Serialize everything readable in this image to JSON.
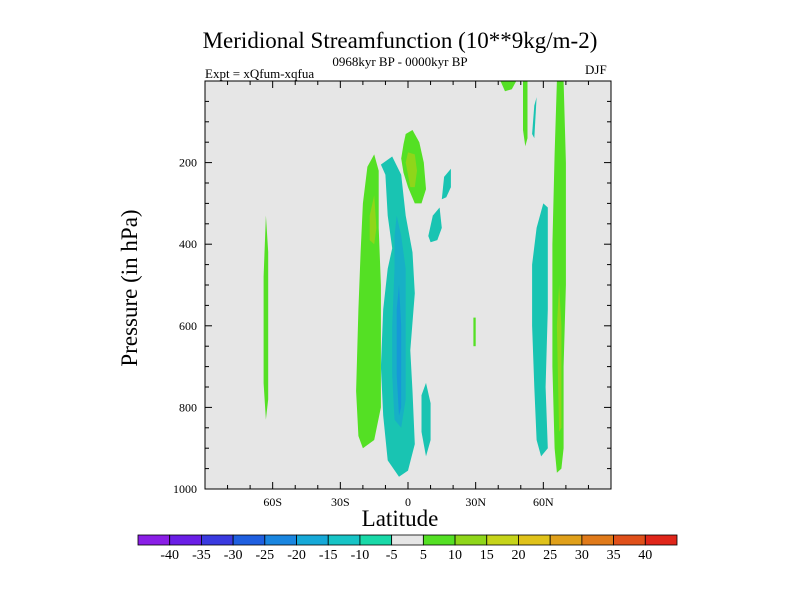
{
  "chart_data": {
    "type": "contour",
    "title": "Meridional Streamfunction (10**9kg/m-2)",
    "subtitle": "0968kyr BP - 0000kyr BP",
    "left_info": "Expt = xQfum-xqfua",
    "right_info": "DJF",
    "xlabel": "Latitude",
    "ylabel": "Pressure (in hPa)",
    "xlim": [
      -90,
      90
    ],
    "ylim": [
      1000,
      0
    ],
    "x_ticks": [
      {
        "value": -60,
        "label": "60S"
      },
      {
        "value": -30,
        "label": "30S"
      },
      {
        "value": 0,
        "label": "0"
      },
      {
        "value": 30,
        "label": "30N"
      },
      {
        "value": 60,
        "label": "60N"
      }
    ],
    "y_ticks": [
      {
        "value": 200,
        "label": "200"
      },
      {
        "value": 400,
        "label": "400"
      },
      {
        "value": 600,
        "label": "600"
      },
      {
        "value": 800,
        "label": "800"
      },
      {
        "value": 1000,
        "label": "1000"
      }
    ],
    "background_color": "#e6e6e6",
    "regions": [
      {
        "level": "-5..-10",
        "color": "#19c4b2",
        "polygon": [
          [
            -7,
            410
          ],
          [
            -9,
            330
          ],
          [
            -10,
            230
          ],
          [
            -12,
            205
          ],
          [
            -7,
            185
          ],
          [
            -3,
            230
          ],
          [
            -1,
            330
          ],
          [
            2,
            420
          ],
          [
            3,
            520
          ],
          [
            1,
            660
          ],
          [
            2,
            760
          ],
          [
            3,
            890
          ],
          [
            0,
            955
          ],
          [
            -4,
            970
          ],
          [
            -9,
            930
          ],
          [
            -11,
            820
          ],
          [
            -12,
            700
          ],
          [
            -11,
            560
          ],
          [
            -9,
            460
          ]
        ]
      },
      {
        "level": "-10..-15",
        "color": "#17b0c6",
        "polygon": [
          [
            -6,
            460
          ],
          [
            -6,
            380
          ],
          [
            -5,
            330
          ],
          [
            -3,
            380
          ],
          [
            -1,
            460
          ],
          [
            -1,
            560
          ],
          [
            -1,
            780
          ],
          [
            -3,
            850
          ],
          [
            -6,
            830
          ],
          [
            -7,
            720
          ],
          [
            -7,
            600
          ]
        ]
      },
      {
        "level": "-15..-20",
        "color": "#1699d6",
        "polygon": [
          [
            -5,
            560
          ],
          [
            -4,
            500
          ],
          [
            -3,
            600
          ],
          [
            -3,
            800
          ],
          [
            -4,
            820
          ],
          [
            -5,
            720
          ]
        ]
      },
      {
        "level": "-5..-10",
        "color": "#19c4b2",
        "polygon": [
          [
            6,
            770
          ],
          [
            8,
            740
          ],
          [
            10,
            790
          ],
          [
            10,
            880
          ],
          [
            8,
            920
          ],
          [
            6,
            860
          ]
        ]
      },
      {
        "level": "-5..-10",
        "color": "#19c4b2",
        "polygon": [
          [
            9,
            380
          ],
          [
            11,
            330
          ],
          [
            14,
            310
          ],
          [
            15,
            360
          ],
          [
            13,
            390
          ],
          [
            10,
            395
          ]
        ]
      },
      {
        "level": "-5..-10",
        "color": "#19c4b2",
        "polygon": [
          [
            15,
            290
          ],
          [
            16,
            235
          ],
          [
            19,
            215
          ],
          [
            19,
            260
          ],
          [
            17,
            285
          ]
        ]
      },
      {
        "level": "-5..-10",
        "color": "#19c4b2",
        "polygon": [
          [
            55,
            450
          ],
          [
            57,
            360
          ],
          [
            60,
            300
          ],
          [
            62,
            310
          ],
          [
            62,
            560
          ],
          [
            61,
            750
          ],
          [
            62,
            900
          ],
          [
            59,
            920
          ],
          [
            57,
            880
          ],
          [
            56,
            750
          ],
          [
            55,
            600
          ]
        ]
      },
      {
        "level": "-5..-10",
        "color": "#19c4b2",
        "polygon": [
          [
            55,
            130
          ],
          [
            56,
            60
          ],
          [
            57,
            40
          ],
          [
            56,
            140
          ]
        ]
      },
      {
        "level": "5..10",
        "color": "#54e024",
        "polygon": [
          [
            -20,
            300
          ],
          [
            -18,
            210
          ],
          [
            -15,
            180
          ],
          [
            -13,
            220
          ],
          [
            -13,
            360
          ],
          [
            -12,
            500
          ],
          [
            -12,
            650
          ],
          [
            -12,
            800
          ],
          [
            -15,
            880
          ],
          [
            -20,
            900
          ],
          [
            -22,
            870
          ],
          [
            -23,
            760
          ],
          [
            -22,
            560
          ],
          [
            -21,
            420
          ]
        ]
      },
      {
        "level": "10..15",
        "color": "#8fd61a",
        "polygon": [
          [
            -17,
            330
          ],
          [
            -15,
            280
          ],
          [
            -14,
            360
          ],
          [
            -15,
            400
          ],
          [
            -17,
            390
          ]
        ]
      },
      {
        "level": "5..10",
        "color": "#54e024",
        "polygon": [
          [
            -3,
            190
          ],
          [
            -2,
            155
          ],
          [
            -1,
            130
          ],
          [
            2,
            120
          ],
          [
            5,
            150
          ],
          [
            7,
            200
          ],
          [
            8,
            265
          ],
          [
            6,
            300
          ],
          [
            3,
            300
          ],
          [
            0,
            260
          ],
          [
            -2,
            225
          ]
        ]
      },
      {
        "level": "10..15",
        "color": "#8fd61a",
        "polygon": [
          [
            -1,
            200
          ],
          [
            0,
            175
          ],
          [
            3,
            180
          ],
          [
            4,
            220
          ],
          [
            3,
            260
          ],
          [
            1,
            260
          ]
        ]
      },
      {
        "level": "5..10",
        "color": "#54e024",
        "polygon": [
          [
            -64,
            480
          ],
          [
            -63,
            330
          ],
          [
            -62,
            420
          ],
          [
            -62,
            640
          ],
          [
            -62,
            780
          ],
          [
            -63,
            830
          ],
          [
            -64,
            740
          ]
        ]
      },
      {
        "level": "5..10",
        "color": "#54e024",
        "polygon": [
          [
            64,
            400
          ],
          [
            65,
            180
          ],
          [
            66,
            0
          ],
          [
            69,
            0
          ],
          [
            70,
            200
          ],
          [
            70,
            500
          ],
          [
            69,
            700
          ],
          [
            69,
            900
          ],
          [
            68,
            950
          ],
          [
            66,
            960
          ],
          [
            65,
            900
          ],
          [
            64,
            700
          ]
        ]
      },
      {
        "level": "10..15",
        "color": "#8fd61a",
        "polygon": [
          [
            66,
            600
          ],
          [
            67,
            500
          ],
          [
            68,
            600
          ],
          [
            68,
            850
          ],
          [
            67,
            860
          ]
        ]
      },
      {
        "level": "5..10",
        "color": "#54e024",
        "polygon": [
          [
            41,
            0
          ],
          [
            48,
            0
          ],
          [
            46,
            20
          ],
          [
            43,
            25
          ]
        ]
      },
      {
        "level": "5..10",
        "color": "#54e024",
        "polygon": [
          [
            51,
            0
          ],
          [
            53,
            0
          ],
          [
            53,
            140
          ],
          [
            52,
            160
          ],
          [
            51,
            120
          ]
        ]
      },
      {
        "level": "5..10",
        "color": "#54e024",
        "polygon": [
          [
            29,
            580
          ],
          [
            30,
            580
          ],
          [
            30,
            650
          ],
          [
            29,
            650
          ]
        ]
      }
    ],
    "colorbar": {
      "levels": [
        "-40",
        "-35",
        "-30",
        "-25",
        "-20",
        "-15",
        "-10",
        "-5",
        "5",
        "10",
        "15",
        "20",
        "25",
        "30",
        "35",
        "40"
      ],
      "colors": [
        "#8a1ee6",
        "#6a1ee6",
        "#3a3ae0",
        "#1f5fe0",
        "#1a86e0",
        "#16a9d8",
        "#17c4c6",
        "#19d9a8",
        "#e6e6e6",
        "#54e024",
        "#8fd61a",
        "#c6d41a",
        "#e0c21a",
        "#e0a01a",
        "#e07a1a",
        "#e0501a",
        "#e0261a"
      ]
    }
  }
}
